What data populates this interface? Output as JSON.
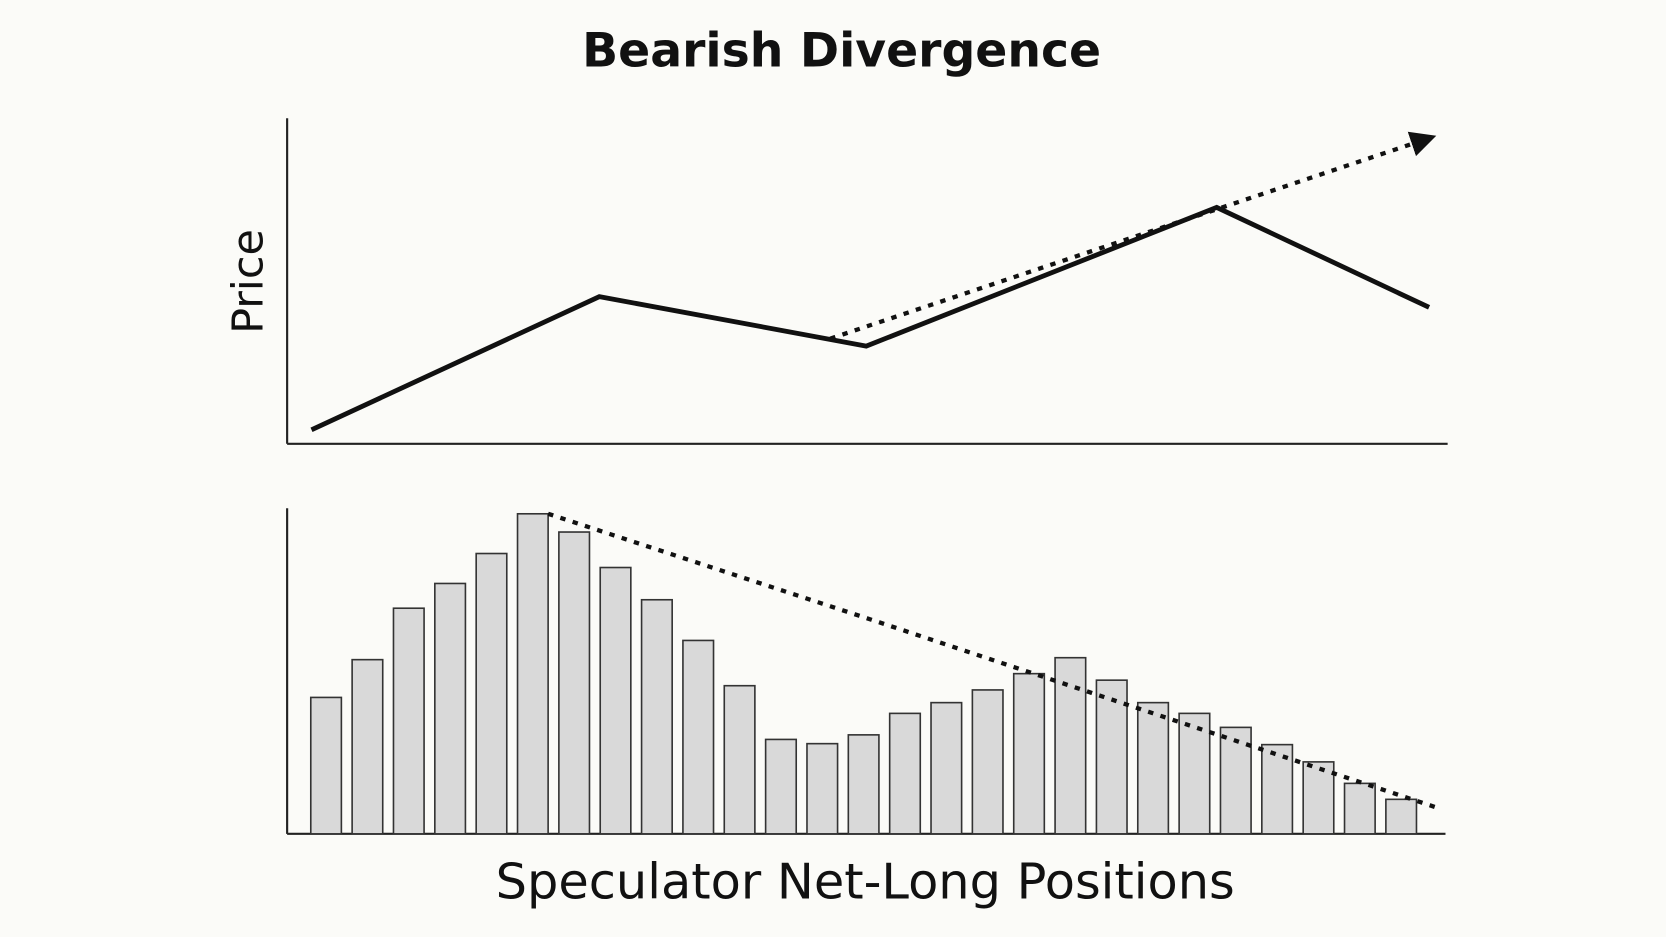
{
  "chart_data": [
    {
      "type": "line",
      "title": "Bearish Divergence",
      "ylabel": "Price",
      "x": [
        2.1,
        26.9,
        49.9,
        80.1,
        98.4
      ],
      "values": [
        4.3,
        45.2,
        30.0,
        72.6,
        41.9
      ],
      "xlim": [
        0,
        100
      ],
      "ylim": [
        0,
        100
      ],
      "color": "#111111",
      "trend": {
        "x": [
          46.8,
          98.6
        ],
        "values": [
          32.3,
          94.1
        ],
        "arrow": true
      }
    },
    {
      "type": "bar",
      "xlabel": "Speculator Net-Long Positions",
      "categories": [
        null,
        null,
        null,
        null,
        null,
        null,
        null,
        null,
        null,
        null,
        null,
        null,
        null,
        null,
        null,
        null,
        null,
        null,
        null,
        null,
        null,
        null,
        null,
        null,
        null,
        null,
        null
      ],
      "values": [
        41.9,
        53.5,
        69.3,
        76.9,
        86.1,
        98.3,
        92.7,
        81.8,
        71.9,
        59.4,
        45.5,
        29.0,
        27.7,
        30.4,
        37.0,
        40.3,
        44.2,
        49.2,
        54.1,
        47.2,
        40.3,
        37.0,
        32.7,
        27.4,
        22.1,
        15.5,
        10.6
      ],
      "ylim": [
        0,
        100
      ],
      "color": "#d9d9d9",
      "trend": {
        "x": [
          5.37,
          13.3,
          26.9
        ],
        "values": [
          98.3,
          65.3,
          7.9
        ],
        "arrow": false
      }
    }
  ]
}
